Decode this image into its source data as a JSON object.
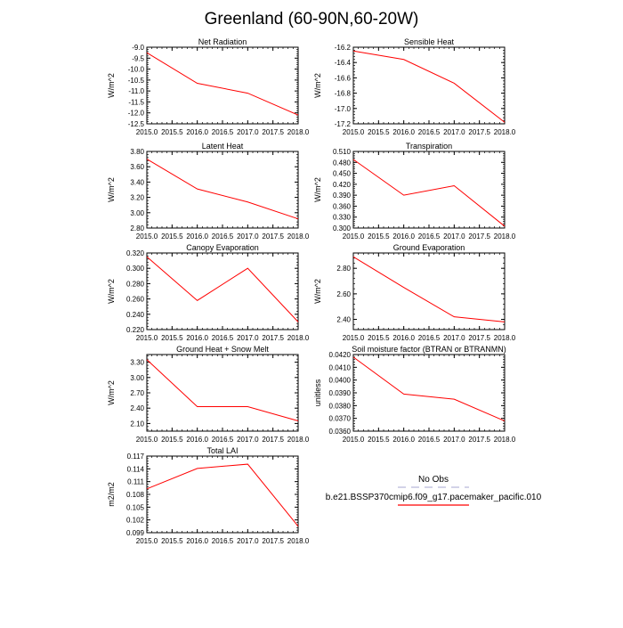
{
  "page": {
    "title": "Greenland (60-90N,60-20W)"
  },
  "legend": {
    "obs_label": "No Obs",
    "obs_color": "#b9b9d9",
    "case_label": "b.e21.BSSP370cmip6.f09_g17.pacemaker_pacific.010",
    "case_color": "#ff0000"
  },
  "chart_data": [
    {
      "type": "line",
      "title": "Net Radiation",
      "xlabel": "",
      "ylabel": "W/m^2",
      "x": [
        2015.0,
        2016.0,
        2017.0,
        2018.0
      ],
      "xlim": [
        2015.0,
        2018.0
      ],
      "xticks": [
        "2015.0",
        "2015.5",
        "2016.0",
        "2016.5",
        "2017.0",
        "2017.5",
        "2018.0"
      ],
      "ylim": [
        -12.5,
        -9.0
      ],
      "yticks": [
        "-9.0",
        "-9.5",
        "-10.0",
        "-10.5",
        "-11.0",
        "-11.5",
        "-12.0",
        "-12.5"
      ],
      "series": [
        {
          "name": "b.e21.BSSP370cmip6.f09_g17.pacemaker_pacific.010",
          "values": [
            -9.25,
            -10.65,
            -11.1,
            -12.1
          ]
        }
      ]
    },
    {
      "type": "line",
      "title": "Sensible Heat",
      "xlabel": "",
      "ylabel": "W/m^2",
      "x": [
        2015.0,
        2016.0,
        2017.0,
        2018.0
      ],
      "xlim": [
        2015.0,
        2018.0
      ],
      "xticks": [
        "2015.0",
        "2015.5",
        "2016.0",
        "2016.5",
        "2017.0",
        "2017.5",
        "2018.0"
      ],
      "ylim": [
        -17.2,
        -16.2
      ],
      "yticks": [
        "-16.2",
        "-16.4",
        "-16.6",
        "-16.8",
        "-17.0",
        "-17.2"
      ],
      "series": [
        {
          "name": "b.e21.BSSP370cmip6.f09_g17.pacemaker_pacific.010",
          "values": [
            -16.25,
            -16.36,
            -16.67,
            -17.18
          ]
        }
      ]
    },
    {
      "type": "line",
      "title": "Latent Heat",
      "xlabel": "",
      "ylabel": "W/m^2",
      "x": [
        2015.0,
        2016.0,
        2017.0,
        2018.0
      ],
      "xlim": [
        2015.0,
        2018.0
      ],
      "xticks": [
        "2015.0",
        "2015.5",
        "2016.0",
        "2016.5",
        "2017.0",
        "2017.5",
        "2018.0"
      ],
      "ylim": [
        2.8,
        3.8
      ],
      "yticks": [
        "3.80",
        "3.60",
        "3.40",
        "3.20",
        "3.00",
        "2.80"
      ],
      "series": [
        {
          "name": "b.e21.BSSP370cmip6.f09_g17.pacemaker_pacific.010",
          "values": [
            3.7,
            3.31,
            3.14,
            2.92
          ]
        }
      ]
    },
    {
      "type": "line",
      "title": "Transpiration",
      "xlabel": "",
      "ylabel": "W/m^2",
      "x": [
        2015.0,
        2016.0,
        2017.0,
        2018.0
      ],
      "xlim": [
        2015.0,
        2018.0
      ],
      "xticks": [
        "2015.0",
        "2015.5",
        "2016.0",
        "2016.5",
        "2017.0",
        "2017.5",
        "2018.0"
      ],
      "ylim": [
        0.3,
        0.51
      ],
      "yticks": [
        "0.510",
        "0.480",
        "0.450",
        "0.420",
        "0.390",
        "0.360",
        "0.330",
        "0.300"
      ],
      "series": [
        {
          "name": "b.e21.BSSP370cmip6.f09_g17.pacemaker_pacific.010",
          "values": [
            0.488,
            0.39,
            0.416,
            0.305
          ]
        }
      ]
    },
    {
      "type": "line",
      "title": "Canopy Evaporation",
      "xlabel": "",
      "ylabel": "W/m^2",
      "x": [
        2015.0,
        2016.0,
        2017.0,
        2018.0
      ],
      "xlim": [
        2015.0,
        2018.0
      ],
      "xticks": [
        "2015.0",
        "2015.5",
        "2016.0",
        "2016.5",
        "2017.0",
        "2017.5",
        "2018.0"
      ],
      "ylim": [
        0.22,
        0.32
      ],
      "yticks": [
        "0.320",
        "0.300",
        "0.280",
        "0.260",
        "0.240",
        "0.220"
      ],
      "series": [
        {
          "name": "b.e21.BSSP370cmip6.f09_g17.pacemaker_pacific.010",
          "values": [
            0.315,
            0.258,
            0.3,
            0.23
          ]
        }
      ]
    },
    {
      "type": "line",
      "title": "Ground Evaporation",
      "xlabel": "",
      "ylabel": "W/m^2",
      "x": [
        2015.0,
        2016.0,
        2017.0,
        2018.0
      ],
      "xlim": [
        2015.0,
        2018.0
      ],
      "xticks": [
        "2015.0",
        "2015.5",
        "2016.0",
        "2016.5",
        "2017.0",
        "2017.5",
        "2018.0"
      ],
      "ylim": [
        2.32,
        2.92
      ],
      "yticks": [
        "2.80",
        "2.60",
        "2.40"
      ],
      "series": [
        {
          "name": "b.e21.BSSP370cmip6.f09_g17.pacemaker_pacific.010",
          "values": [
            2.89,
            2.65,
            2.42,
            2.38
          ]
        }
      ]
    },
    {
      "type": "line",
      "title": "Ground Heat + Snow Melt",
      "xlabel": "",
      "ylabel": "W/m^2",
      "x": [
        2015.0,
        2016.0,
        2017.0,
        2018.0
      ],
      "xlim": [
        2015.0,
        2018.0
      ],
      "xticks": [
        "2015.0",
        "2015.5",
        "2016.0",
        "2016.5",
        "2017.0",
        "2017.5",
        "2018.0"
      ],
      "ylim": [
        1.95,
        3.45
      ],
      "yticks": [
        "3.30",
        "3.00",
        "2.70",
        "2.40",
        "2.10"
      ],
      "series": [
        {
          "name": "b.e21.BSSP370cmip6.f09_g17.pacemaker_pacific.010",
          "values": [
            3.35,
            2.43,
            2.43,
            2.15
          ]
        }
      ]
    },
    {
      "type": "line",
      "title": "Soil moisture factor (BTRAN or BTRANMN)",
      "xlabel": "",
      "ylabel": "unitless",
      "x": [
        2015.0,
        2016.0,
        2017.0,
        2018.0
      ],
      "xlim": [
        2015.0,
        2018.0
      ],
      "xticks": [
        "2015.0",
        "2015.5",
        "2016.0",
        "2016.5",
        "2017.0",
        "2017.5",
        "2018.0"
      ],
      "ylim": [
        0.036,
        0.042
      ],
      "yticks": [
        "0.0420",
        "0.0410",
        "0.0400",
        "0.0390",
        "0.0380",
        "0.0370",
        "0.0360"
      ],
      "series": [
        {
          "name": "b.e21.BSSP370cmip6.f09_g17.pacemaker_pacific.010",
          "values": [
            0.0418,
            0.0389,
            0.0385,
            0.0368
          ]
        }
      ]
    },
    {
      "type": "line",
      "title": "Total LAI",
      "xlabel": "",
      "ylabel": "m2/m2",
      "x": [
        2015.0,
        2016.0,
        2017.0,
        2018.0
      ],
      "xlim": [
        2015.0,
        2018.0
      ],
      "xticks": [
        "2015.0",
        "2015.5",
        "2016.0",
        "2016.5",
        "2017.0",
        "2017.5",
        "2018.0"
      ],
      "ylim": [
        0.099,
        0.117
      ],
      "yticks": [
        "0.117",
        "0.114",
        "0.111",
        "0.108",
        "0.105",
        "0.102",
        "0.099"
      ],
      "series": [
        {
          "name": "b.e21.BSSP370cmip6.f09_g17.pacemaker_pacific.010",
          "values": [
            0.1093,
            0.1141,
            0.1151,
            0.1005
          ]
        }
      ]
    }
  ]
}
